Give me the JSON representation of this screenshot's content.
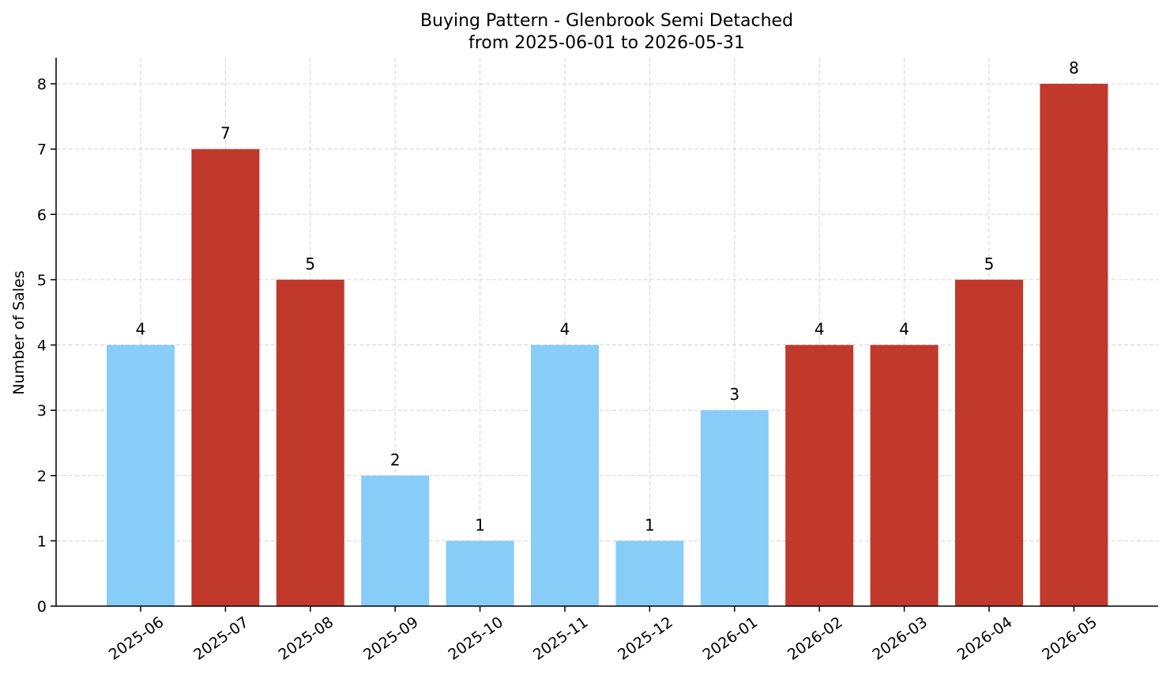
{
  "chart_data": {
    "type": "bar",
    "title": "Buying Pattern - Glenbrook Semi Detached",
    "subtitle": "from 2025-06-01 to 2026-05-31",
    "xlabel": "",
    "ylabel": "Number of Sales",
    "categories": [
      "2025-06",
      "2025-07",
      "2025-08",
      "2025-09",
      "2025-10",
      "2025-11",
      "2025-12",
      "2026-01",
      "2026-02",
      "2026-03",
      "2026-04",
      "2026-05"
    ],
    "values": [
      4,
      7,
      5,
      2,
      1,
      4,
      1,
      3,
      4,
      4,
      5,
      8
    ],
    "ylim": [
      0,
      8.4
    ],
    "yticks": [
      0,
      1,
      2,
      3,
      4,
      5,
      6,
      7,
      8
    ],
    "grid": true,
    "colors": {
      "low": "#87cdf8",
      "high": "#c0392b"
    },
    "bar_colors": [
      "low",
      "high",
      "high",
      "low",
      "low",
      "low",
      "low",
      "low",
      "high",
      "high",
      "high",
      "high"
    ]
  }
}
